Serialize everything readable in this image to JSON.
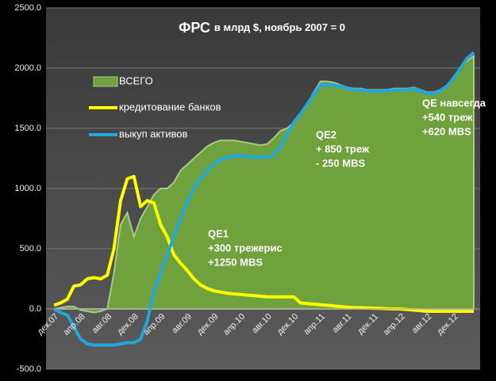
{
  "chart_data": {
    "type": "line",
    "title": "ФРС",
    "subtitle": "в млрд $, ноябрь 2007 = 0",
    "categories": [
      "дек.07",
      null,
      null,
      null,
      "апр.08",
      null,
      null,
      null,
      "авг.08",
      null,
      null,
      null,
      "дек.08",
      null,
      null,
      null,
      "апр.09",
      null,
      null,
      null,
      "авг.09",
      null,
      null,
      null,
      "дек.09",
      null,
      null,
      null,
      "апр.10",
      null,
      null,
      null,
      "авг.10",
      null,
      null,
      null,
      "дек.10",
      null,
      null,
      null,
      "апр.11",
      null,
      null,
      null,
      "авг.11",
      null,
      null,
      null,
      "дек.11",
      null,
      null,
      null,
      "апр.12",
      null,
      null,
      null,
      "авг.12",
      null,
      null,
      null,
      "дек.12",
      null,
      null,
      null
    ],
    "series": [
      {
        "name": "ВСЕГО",
        "style": "area",
        "color": "#6fa23c",
        "values": [
          0,
          10,
          20,
          20,
          -10,
          -20,
          -30,
          -20,
          0,
          300,
          700,
          800,
          600,
          750,
          850,
          950,
          1000,
          1000,
          1050,
          1150,
          1200,
          1250,
          1300,
          1350,
          1380,
          1400,
          1400,
          1400,
          1390,
          1380,
          1370,
          1360,
          1370,
          1420,
          1480,
          1500,
          1550,
          1620,
          1700,
          1800,
          1890,
          1890,
          1880,
          1860,
          1840,
          1830,
          1830,
          1820,
          1820,
          1820,
          1820,
          1830,
          1830,
          1830,
          1840,
          1820,
          1800,
          1800,
          1820,
          1860,
          1930,
          2000,
          2060,
          2100
        ]
      },
      {
        "name": "кредитование банков",
        "style": "line",
        "color": "#ffff00",
        "values": [
          30,
          50,
          80,
          190,
          200,
          250,
          260,
          250,
          280,
          500,
          900,
          1080,
          1100,
          850,
          900,
          880,
          700,
          600,
          450,
          380,
          320,
          250,
          200,
          170,
          150,
          140,
          130,
          125,
          120,
          115,
          110,
          105,
          100,
          100,
          100,
          100,
          100,
          50,
          45,
          40,
          35,
          30,
          25,
          20,
          15,
          12,
          10,
          8,
          6,
          4,
          2,
          0,
          0,
          -5,
          -10,
          -15,
          -20,
          -20,
          -20,
          -20,
          -20,
          -20,
          -20,
          -20
        ]
      },
      {
        "name": "выкуп активов",
        "style": "line",
        "color": "#1fa8e0",
        "values": [
          0,
          -30,
          -50,
          -150,
          -250,
          -290,
          -300,
          -300,
          -300,
          -300,
          -290,
          -280,
          -280,
          -250,
          -100,
          150,
          300,
          450,
          600,
          750,
          880,
          1000,
          1080,
          1150,
          1200,
          1240,
          1260,
          1270,
          1270,
          1270,
          1260,
          1260,
          1260,
          1280,
          1350,
          1450,
          1550,
          1620,
          1700,
          1780,
          1860,
          1860,
          1860,
          1850,
          1830,
          1820,
          1820,
          1810,
          1810,
          1810,
          1810,
          1820,
          1820,
          1820,
          1830,
          1810,
          1790,
          1790,
          1810,
          1850,
          1920,
          2000,
          2080,
          2130
        ]
      }
    ],
    "ylim": [
      -500,
      2500
    ],
    "yticks": [
      {
        "value": -500,
        "label": "-500.0"
      },
      {
        "value": 0,
        "label": "0.0"
      },
      {
        "value": 500,
        "label": "500.0"
      },
      {
        "value": 1000,
        "label": "1000.0"
      },
      {
        "value": 1500,
        "label": "1500.0"
      },
      {
        "value": 2000,
        "label": "2000.0"
      },
      {
        "value": 2500,
        "label": "2500.0"
      }
    ],
    "grid": true,
    "annotations": [
      [
        "QE1",
        "+300 трежерис",
        "+1250 MBS"
      ],
      [
        "QE2",
        "+ 850 треж",
        "- 250 MBS"
      ],
      [
        "QE навсегда",
        "+540 треж",
        "+620 MBS"
      ]
    ]
  }
}
